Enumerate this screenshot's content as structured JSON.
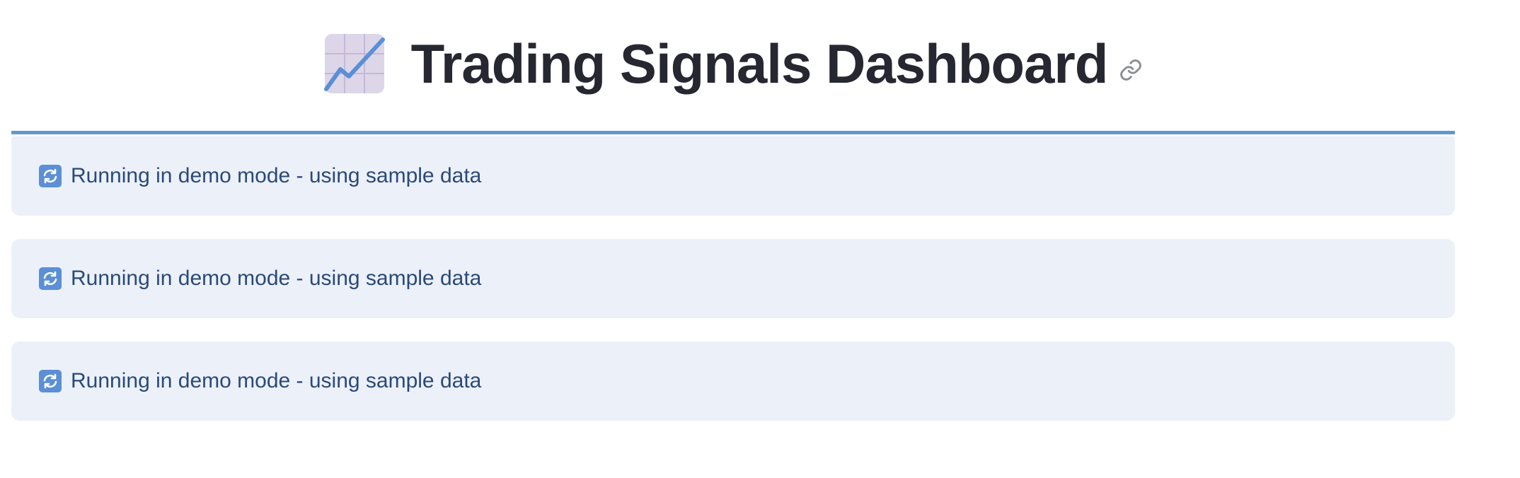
{
  "header": {
    "title": "Trading Signals Dashboard",
    "title_icon": "chart-increasing-icon",
    "anchor_icon": "link-icon"
  },
  "alerts": [
    {
      "icon": "arrows-refresh-icon",
      "text": "Running in demo mode - using sample data"
    },
    {
      "icon": "arrows-refresh-icon",
      "text": "Running in demo mode - using sample data"
    },
    {
      "icon": "arrows-refresh-icon",
      "text": "Running in demo mode - using sample data"
    }
  ],
  "colors": {
    "title": "#262730",
    "divider": "#5f98cf",
    "alert_bg": "#ecf0f9",
    "alert_text": "#2a4a78"
  }
}
